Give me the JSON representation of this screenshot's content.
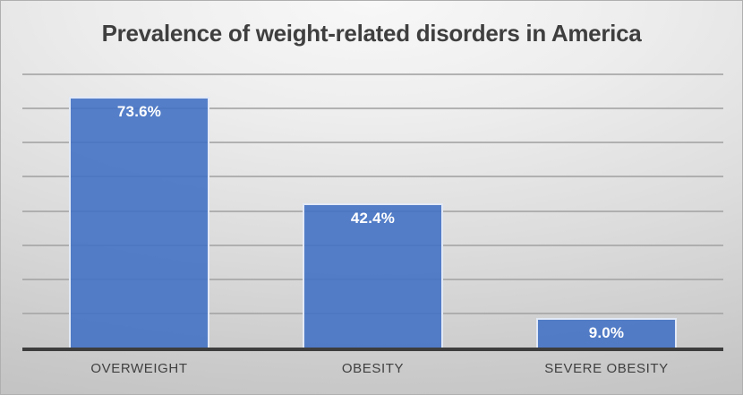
{
  "chart_data": {
    "type": "bar",
    "title": "Prevalence of weight-related disorders in America",
    "categories": [
      "OVERWEIGHT",
      "OBESITY",
      "SEVERE OBESITY"
    ],
    "values": [
      73.6,
      42.4,
      9.0
    ],
    "data_labels": [
      "73.6%",
      "42.4%",
      "9.0%"
    ],
    "xlabel": "",
    "ylabel": "",
    "ylim": [
      0,
      80
    ],
    "gridline_interval": 10,
    "grid": "horizontal",
    "y_tick_labels": "none",
    "legend": "none",
    "data_label_position": "inside-end",
    "colors": {
      "bar_fill": "#4472C4",
      "bar_fill_opacity": 0.9,
      "bar_border": "#E2E9F6",
      "gridline": "#A7A7A7",
      "axis_line": "#3D3D3D",
      "title_text": "#3F3F3F",
      "data_label_text": "#FFFFFF",
      "category_text": "#404040",
      "background_center": "#F8F8F8",
      "background_edge": "#C2C2C2"
    }
  }
}
